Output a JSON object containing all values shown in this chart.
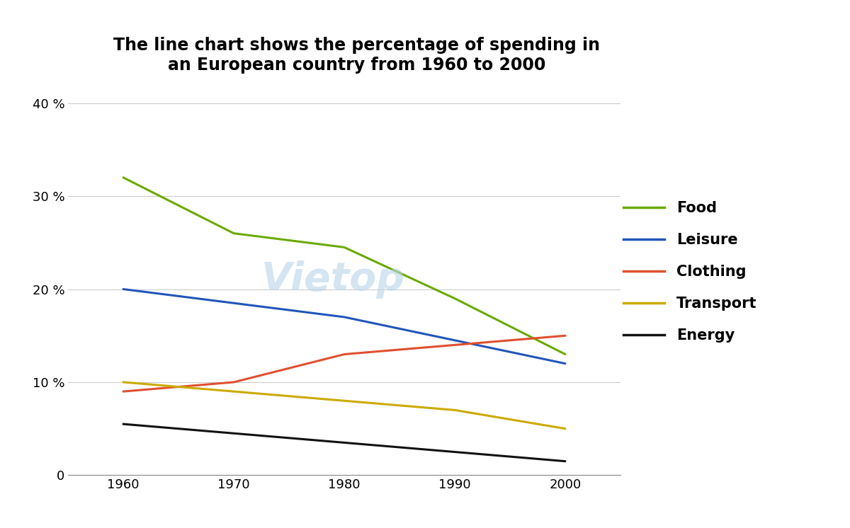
{
  "title_line1": "The line chart shows the percentage of spending in",
  "title_line2": "an European country from 1960 to 2000",
  "title_fontsize": 17,
  "x_years": [
    1960,
    1970,
    1980,
    1990,
    2000
  ],
  "series": {
    "Food": {
      "color": "#6aaa00",
      "values": [
        32,
        26,
        24.5,
        19,
        13
      ],
      "linewidth": 2.2
    },
    "Leisure": {
      "color": "#2255bb",
      "values": [
        20,
        18.5,
        17,
        14.5,
        12
      ],
      "linewidth": 2.2
    },
    "Clothing": {
      "color": "#e05030",
      "values": [
        9,
        10,
        13,
        14,
        15
      ],
      "linewidth": 2.2
    },
    "Transport": {
      "color": "#ccaa00",
      "values": [
        10,
        9,
        8,
        7,
        5
      ],
      "linewidth": 2.2
    },
    "Energy": {
      "color": "#111111",
      "values": [
        5.5,
        4.5,
        3.5,
        2.5,
        1.5
      ],
      "linewidth": 2.2
    }
  },
  "ylim": [
    0,
    42
  ],
  "yticks": [
    0,
    10,
    20,
    30,
    40
  ],
  "ytick_labels": [
    "0",
    "10 %",
    "20 %",
    "30 %",
    "40 %"
  ],
  "xticks": [
    1960,
    1970,
    1980,
    1990,
    2000
  ],
  "background_color": "#ffffff",
  "grid_color": "#cccccc",
  "legend_fontsize": 15,
  "axis_label_fontsize": 13,
  "watermark_text": "Vietop",
  "watermark_color": "#b8d4e8",
  "watermark_alpha": 0.6,
  "watermark_fontsize": 40
}
